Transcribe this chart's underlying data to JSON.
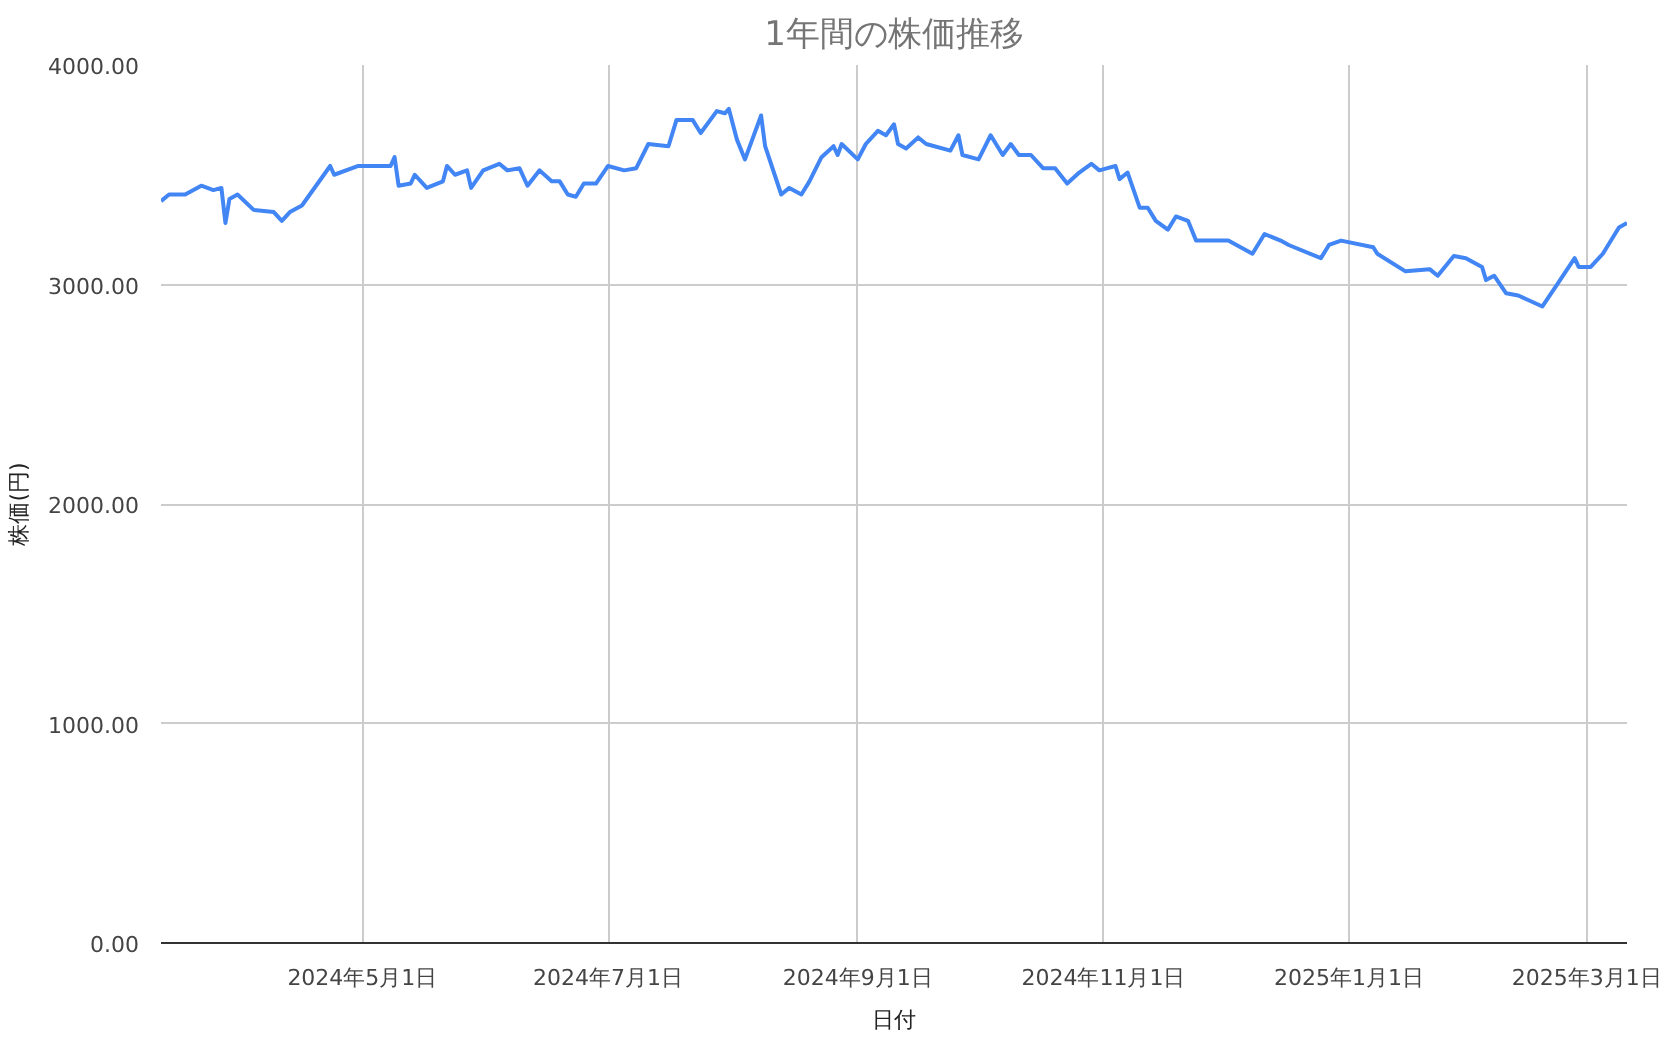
{
  "chart_data": {
    "type": "line",
    "title": "1年間の株価推移",
    "xlabel": "日付",
    "ylabel": "株価(円)",
    "x": [
      "2024-03-12",
      "2024-03-14",
      "2024-03-18",
      "2024-03-22",
      "2024-03-25",
      "2024-03-27",
      "2024-03-28",
      "2024-03-29",
      "2024-03-31",
      "2024-04-04",
      "2024-04-09",
      "2024-04-11",
      "2024-04-13",
      "2024-04-16",
      "2024-04-23",
      "2024-04-24",
      "2024-04-30",
      "2024-05-08",
      "2024-05-09",
      "2024-05-10",
      "2024-05-13",
      "2024-05-14",
      "2024-05-17",
      "2024-05-21",
      "2024-05-22",
      "2024-05-24",
      "2024-05-27",
      "2024-05-28",
      "2024-05-31",
      "2024-06-04",
      "2024-06-06",
      "2024-06-09",
      "2024-06-11",
      "2024-06-14",
      "2024-06-17",
      "2024-06-19",
      "2024-06-21",
      "2024-06-23",
      "2024-06-25",
      "2024-06-28",
      "2024-07-01",
      "2024-07-05",
      "2024-07-08",
      "2024-07-11",
      "2024-07-16",
      "2024-07-18",
      "2024-07-22",
      "2024-07-24",
      "2024-07-28",
      "2024-07-30",
      "2024-07-31",
      "2024-08-02",
      "2024-08-04",
      "2024-08-08",
      "2024-08-09",
      "2024-08-13",
      "2024-08-15",
      "2024-08-18",
      "2024-08-20",
      "2024-08-23",
      "2024-08-26",
      "2024-08-27",
      "2024-08-28",
      "2024-09-01",
      "2024-09-03",
      "2024-09-06",
      "2024-09-08",
      "2024-09-10",
      "2024-09-11",
      "2024-09-13",
      "2024-09-16",
      "2024-09-18",
      "2024-09-24",
      "2024-09-26",
      "2024-09-27",
      "2024-10-01",
      "2024-10-04",
      "2024-10-07",
      "2024-10-09",
      "2024-10-11",
      "2024-10-14",
      "2024-10-17",
      "2024-10-20",
      "2024-10-23",
      "2024-10-26",
      "2024-10-29",
      "2024-10-31",
      "2024-11-02",
      "2024-11-04",
      "2024-11-05",
      "2024-11-07",
      "2024-11-10",
      "2024-11-12",
      "2024-11-14",
      "2024-11-17",
      "2024-11-19",
      "2024-11-22",
      "2024-11-24",
      "2024-12-02",
      "2024-12-08",
      "2024-12-11",
      "2024-12-15",
      "2024-12-17",
      "2024-12-25",
      "2024-12-27",
      "2024-12-30",
      "2025-01-07",
      "2025-01-08",
      "2025-01-15",
      "2025-01-21",
      "2025-01-23",
      "2025-01-27",
      "2025-01-30",
      "2025-02-03",
      "2025-02-04",
      "2025-02-06",
      "2025-02-09",
      "2025-02-12",
      "2025-02-18",
      "2025-02-22",
      "2025-02-26",
      "2025-02-27",
      "2025-03-02",
      "2025-03-05",
      "2025-03-09",
      "2025-03-11"
    ],
    "series": [
      {
        "color": "#4285f4",
        "values": [
          3380,
          3410,
          3410,
          3450,
          3430,
          3440,
          3280,
          3390,
          3410,
          3340,
          3330,
          3290,
          3330,
          3360,
          3540,
          3500,
          3540,
          3540,
          3580,
          3450,
          3460,
          3500,
          3440,
          3470,
          3540,
          3500,
          3520,
          3440,
          3520,
          3550,
          3520,
          3530,
          3450,
          3520,
          3470,
          3470,
          3410,
          3400,
          3460,
          3460,
          3540,
          3520,
          3530,
          3640,
          3630,
          3750,
          3750,
          3690,
          3790,
          3780,
          3800,
          3660,
          3570,
          3770,
          3630,
          3410,
          3440,
          3410,
          3470,
          3580,
          3630,
          3590,
          3640,
          3570,
          3640,
          3700,
          3680,
          3730,
          3640,
          3620,
          3670,
          3640,
          3610,
          3680,
          3590,
          3570,
          3680,
          3590,
          3640,
          3590,
          3590,
          3530,
          3530,
          3460,
          3510,
          3550,
          3520,
          3530,
          3540,
          3480,
          3510,
          3350,
          3350,
          3290,
          3250,
          3310,
          3290,
          3200,
          3200,
          3140,
          3230,
          3200,
          3180,
          3120,
          3180,
          3200,
          3170,
          3140,
          3060,
          3070,
          3040,
          3130,
          3120,
          3080,
          3020,
          3040,
          2960,
          2950,
          2900,
          3010,
          3120,
          3080,
          3080,
          3140,
          3260,
          3280
        ]
      }
    ],
    "xlim": [
      "2024-03-12",
      "2025-03-11"
    ],
    "xticks": [
      {
        "value": "2024-05-01",
        "label": "2024年5月1日"
      },
      {
        "value": "2024-07-01",
        "label": "2024年7月1日"
      },
      {
        "value": "2024-09-01",
        "label": "2024年9月1日"
      },
      {
        "value": "2024-11-01",
        "label": "2024年11月1日"
      },
      {
        "value": "2025-01-01",
        "label": "2025年1月1日"
      },
      {
        "value": "2025-03-01",
        "label": "2025年3月1日"
      }
    ],
    "ylim": [
      0,
      4000
    ],
    "yticks": [
      {
        "value": 0,
        "label": "0.00"
      },
      {
        "value": 1000,
        "label": "1000.00"
      },
      {
        "value": 2000,
        "label": "2000.00"
      },
      {
        "value": 3000,
        "label": "3000.00"
      },
      {
        "value": 4000,
        "label": "4000.00"
      }
    ],
    "grid": true,
    "line_style": "solid"
  }
}
